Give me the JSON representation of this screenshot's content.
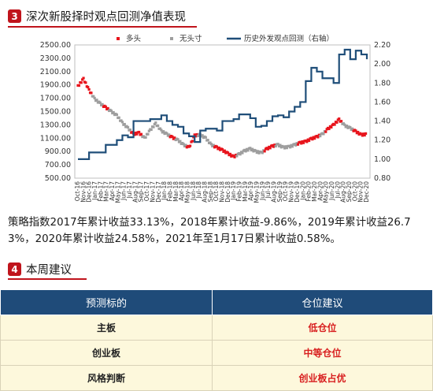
{
  "section3": {
    "number": "3",
    "title": "深次新股择时观点回测净值表现"
  },
  "section4": {
    "number": "4",
    "title": "本周建议"
  },
  "paragraph": "策略指数2017年累计收益33.13%，2018年累计收益-9.86%，2019年累计收益26.73%，2020年累计收益24.58%，2021年至1月17日累计收益0.58%。",
  "table": {
    "headers": [
      "预测标的",
      "仓位建议"
    ],
    "rows": [
      {
        "label": "主板",
        "value": "低仓位"
      },
      {
        "label": "创业板",
        "value": "中等仓位"
      },
      {
        "label": "风格判断",
        "value": "创业板占优"
      }
    ]
  },
  "chart_data": {
    "type": "scatter",
    "legend": [
      "多头",
      "无头寸",
      "历史外发观点回测（右轴）"
    ],
    "legend_placement": "top",
    "colors": {
      "long": "#e8141c",
      "none": "#9e9e9e",
      "backtest": "#1f4e79"
    },
    "y_left": {
      "ticks": [
        "2500.00",
        "2300.00",
        "2100.00",
        "1900.00",
        "1700.00",
        "1500.00",
        "1300.00",
        "1100.00",
        "900.00",
        "700.00",
        "500.00"
      ],
      "range": [
        500,
        2500
      ]
    },
    "y_right": {
      "ticks": [
        "2.20",
        "2.00",
        "1.80",
        "1.60",
        "1.40",
        "1.20",
        "1.00",
        "0.80"
      ],
      "range": [
        0.8,
        2.2
      ]
    },
    "x_ticks": [
      "Oct-16",
      "Nov-16",
      "Dec-16",
      "Jan-17",
      "Feb-17",
      "Mar-17",
      "Apr-17",
      "May-17",
      "Jun-17",
      "Jul-17",
      "Aug-17",
      "Sep-17",
      "Oct-17",
      "Nov-17",
      "Dec-17",
      "Jan-18",
      "Feb-18",
      "Mar-18",
      "Apr-18",
      "May-18",
      "Jun-18",
      "Jul-18",
      "Aug-18",
      "Sep-18",
      "Oct-18",
      "Nov-18",
      "Dec-18",
      "Jan-19",
      "Feb-19",
      "Mar-19",
      "Apr-19",
      "May-19",
      "Jun-19",
      "Jul-19",
      "Aug-19",
      "Sep-19",
      "Oct-19",
      "Nov-19",
      "Dec-19",
      "Jan-20",
      "Feb-20",
      "Mar-20",
      "Apr-20",
      "May-20",
      "Jun-20",
      "Jul-20",
      "Aug-20",
      "Sep-20",
      "Oct-20",
      "Nov-20",
      "Dec-20"
    ],
    "index_series": [
      [
        0,
        1880,
        "long"
      ],
      [
        1,
        1990,
        "long"
      ],
      [
        2,
        1820,
        "long"
      ],
      [
        3,
        1690,
        "none"
      ],
      [
        4,
        1620,
        "none"
      ],
      [
        5,
        1560,
        "long"
      ],
      [
        6,
        1500,
        "none"
      ],
      [
        7,
        1440,
        "none"
      ],
      [
        8,
        1330,
        "none"
      ],
      [
        9,
        1250,
        "none"
      ],
      [
        10,
        1160,
        "long"
      ],
      [
        11,
        1180,
        "long"
      ],
      [
        12,
        1100,
        "none"
      ],
      [
        13,
        1220,
        "none"
      ],
      [
        14,
        1320,
        "none"
      ],
      [
        15,
        1210,
        "none"
      ],
      [
        16,
        1160,
        "none"
      ],
      [
        17,
        1110,
        "long"
      ],
      [
        18,
        1070,
        "none"
      ],
      [
        19,
        1000,
        "none"
      ],
      [
        20,
        960,
        "long"
      ],
      [
        21,
        1140,
        "long"
      ],
      [
        22,
        1150,
        "none"
      ],
      [
        23,
        1100,
        "none"
      ],
      [
        24,
        1000,
        "none"
      ],
      [
        25,
        960,
        "long"
      ],
      [
        26,
        920,
        "long"
      ],
      [
        27,
        870,
        "long"
      ],
      [
        28,
        820,
        "long"
      ],
      [
        29,
        860,
        "none"
      ],
      [
        30,
        910,
        "none"
      ],
      [
        31,
        940,
        "none"
      ],
      [
        32,
        900,
        "none"
      ],
      [
        33,
        880,
        "none"
      ],
      [
        34,
        940,
        "long"
      ],
      [
        35,
        980,
        "long"
      ],
      [
        36,
        1000,
        "none"
      ],
      [
        37,
        960,
        "none"
      ],
      [
        38,
        970,
        "none"
      ],
      [
        39,
        1000,
        "none"
      ],
      [
        40,
        1030,
        "long"
      ],
      [
        41,
        1050,
        "long"
      ],
      [
        42,
        1090,
        "long"
      ],
      [
        43,
        1120,
        "long"
      ],
      [
        44,
        1160,
        "none"
      ],
      [
        45,
        1240,
        "long"
      ],
      [
        46,
        1300,
        "long"
      ],
      [
        47,
        1380,
        "long"
      ],
      [
        48,
        1290,
        "none"
      ],
      [
        49,
        1250,
        "none"
      ],
      [
        50,
        1200,
        "long"
      ],
      [
        51,
        1150,
        "long"
      ],
      [
        52,
        1160,
        "long"
      ]
    ],
    "backtest_series": [
      [
        0,
        1.0
      ],
      [
        2,
        1.07
      ],
      [
        4,
        1.07
      ],
      [
        5,
        1.15
      ],
      [
        6,
        1.15
      ],
      [
        7,
        1.2
      ],
      [
        8,
        1.25
      ],
      [
        9,
        1.23
      ],
      [
        10,
        1.4
      ],
      [
        12,
        1.4
      ],
      [
        13,
        1.42
      ],
      [
        14,
        1.42
      ],
      [
        15,
        1.46
      ],
      [
        16,
        1.4
      ],
      [
        17,
        1.36
      ],
      [
        18,
        1.34
      ],
      [
        19,
        1.27
      ],
      [
        20,
        1.24
      ],
      [
        21,
        1.18
      ],
      [
        22,
        1.3
      ],
      [
        23,
        1.32
      ],
      [
        24,
        1.32
      ],
      [
        25,
        1.3
      ],
      [
        26,
        1.4
      ],
      [
        27,
        1.4
      ],
      [
        28,
        1.42
      ],
      [
        29,
        1.47
      ],
      [
        30,
        1.47
      ],
      [
        31,
        1.43
      ],
      [
        32,
        1.34
      ],
      [
        33,
        1.35
      ],
      [
        34,
        1.4
      ],
      [
        35,
        1.45
      ],
      [
        36,
        1.46
      ],
      [
        37,
        1.44
      ],
      [
        38,
        1.5
      ],
      [
        39,
        1.55
      ],
      [
        40,
        1.6
      ],
      [
        41,
        1.82
      ],
      [
        42,
        1.96
      ],
      [
        43,
        1.92
      ],
      [
        44,
        1.85
      ],
      [
        45,
        1.85
      ],
      [
        46,
        1.8
      ],
      [
        47,
        2.1
      ],
      [
        48,
        2.15
      ],
      [
        49,
        2.05
      ],
      [
        50,
        2.14
      ],
      [
        51,
        2.1
      ],
      [
        52,
        2.05
      ]
    ]
  }
}
